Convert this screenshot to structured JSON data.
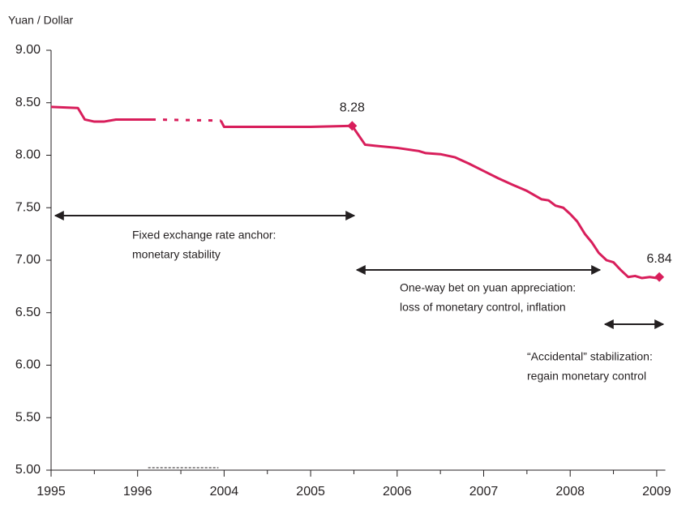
{
  "chart_data": {
    "type": "line",
    "y_label": "Yuan / Dollar",
    "color": "#d81e5b",
    "x": [
      1995.0,
      1995.31,
      1995.39,
      1995.5,
      1995.61,
      1995.75,
      1996.0,
      1997.3,
      2003.7,
      2004.0,
      2004.5,
      2005.0,
      2005.48,
      2005.63,
      2005.75,
      2006.0,
      2006.25,
      2006.33,
      2006.5,
      2006.67,
      2006.83,
      2007.0,
      2007.17,
      2007.33,
      2007.5,
      2007.67,
      2007.75,
      2007.83,
      2007.92,
      2008.0,
      2008.08,
      2008.17,
      2008.25,
      2008.33,
      2008.42,
      2008.5,
      2008.58,
      2008.67,
      2008.75,
      2008.83,
      2008.92,
      2009.0,
      2009.03
    ],
    "values": [
      8.46,
      8.45,
      8.34,
      8.32,
      8.32,
      8.34,
      8.34,
      8.34,
      8.33,
      8.27,
      8.27,
      8.27,
      8.28,
      8.1,
      8.09,
      8.07,
      8.04,
      8.02,
      8.01,
      7.98,
      7.92,
      7.85,
      7.78,
      7.72,
      7.66,
      7.58,
      7.57,
      7.52,
      7.5,
      7.44,
      7.37,
      7.25,
      7.17,
      7.07,
      7.0,
      6.98,
      6.91,
      6.84,
      6.85,
      6.83,
      6.84,
      6.83,
      6.84
    ],
    "axis_break": [
      1996,
      2004
    ],
    "highlights": [
      {
        "x": 2005.48,
        "value": 8.28
      },
      {
        "x": 2009.03,
        "value": 6.84
      }
    ],
    "xlim": [
      1995,
      2009.1
    ],
    "xticks": [
      1995,
      1996,
      2004,
      2005,
      2006,
      2007,
      2008,
      2009
    ],
    "ylim": [
      5,
      9
    ],
    "yticks": [
      {
        "value": 5,
        "label": "5.00"
      },
      {
        "value": 5.5,
        "label": "5.50"
      },
      {
        "value": 6,
        "label": "6.00"
      },
      {
        "value": 6.5,
        "label": "6.50"
      },
      {
        "value": 7,
        "label": "7.00"
      },
      {
        "value": 7.5,
        "label": "7.50"
      },
      {
        "value": 8,
        "label": "8.00"
      },
      {
        "value": 8.5,
        "label": "8.50"
      },
      {
        "value": 9,
        "label": "9.00"
      }
    ],
    "annotations": [
      {
        "lines": [
          "Fixed exchange rate anchor:",
          "monetary stability"
        ]
      },
      {
        "lines": [
          "One-way bet on yuan appreciation:",
          "loss of monetary control, inflation"
        ]
      },
      {
        "lines": [
          "“Accidental” stabilization:",
          "regain monetary control"
        ]
      }
    ]
  }
}
